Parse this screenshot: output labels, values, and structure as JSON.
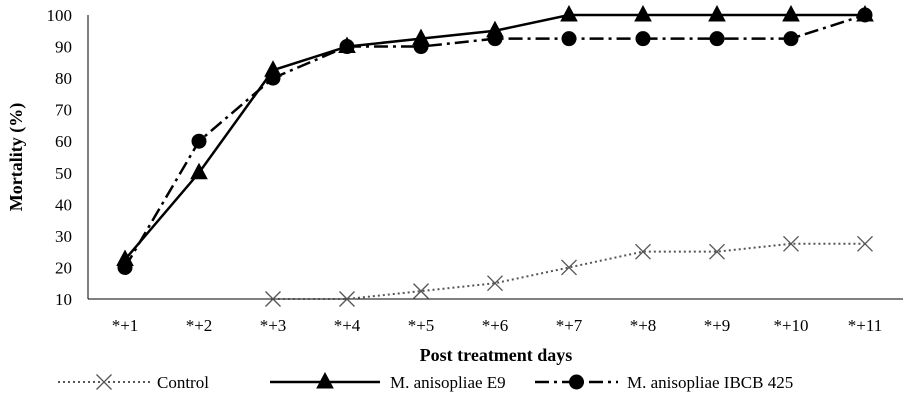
{
  "chart_data": {
    "type": "line",
    "title": "",
    "xlabel": "Post treatment days",
    "ylabel": "Mortality (%)",
    "ylim": [
      10,
      100
    ],
    "y_ticks": [
      "10",
      "20",
      "30",
      "40",
      "50",
      "60",
      "70",
      "80",
      "90",
      "100"
    ],
    "categories": [
      "*+1",
      "*+2",
      "*+3",
      "*+4",
      "*+5",
      "*+6",
      "*+7",
      "*+8",
      "*+9",
      "*+10",
      "*+11"
    ],
    "grid": false,
    "legend_position": "bottom",
    "series": [
      {
        "name": "Control",
        "marker": "x",
        "line_style": "dotted",
        "color": "#555555",
        "values": [
          null,
          null,
          10,
          10,
          12.5,
          15,
          20,
          25,
          25,
          27.5,
          27.5
        ]
      },
      {
        "name": "M. anisopliae E9",
        "marker": "triangle",
        "line_style": "solid",
        "color": "#000000",
        "values": [
          22.5,
          50,
          82.5,
          90,
          92.5,
          95,
          100,
          100,
          100,
          100,
          100
        ]
      },
      {
        "name": "M. anisopliae IBCB 425",
        "marker": "circle",
        "line_style": "dash-dot",
        "color": "#000000",
        "values": [
          20,
          60,
          80,
          90,
          90,
          92.5,
          92.5,
          92.5,
          92.5,
          92.5,
          100
        ]
      }
    ]
  }
}
